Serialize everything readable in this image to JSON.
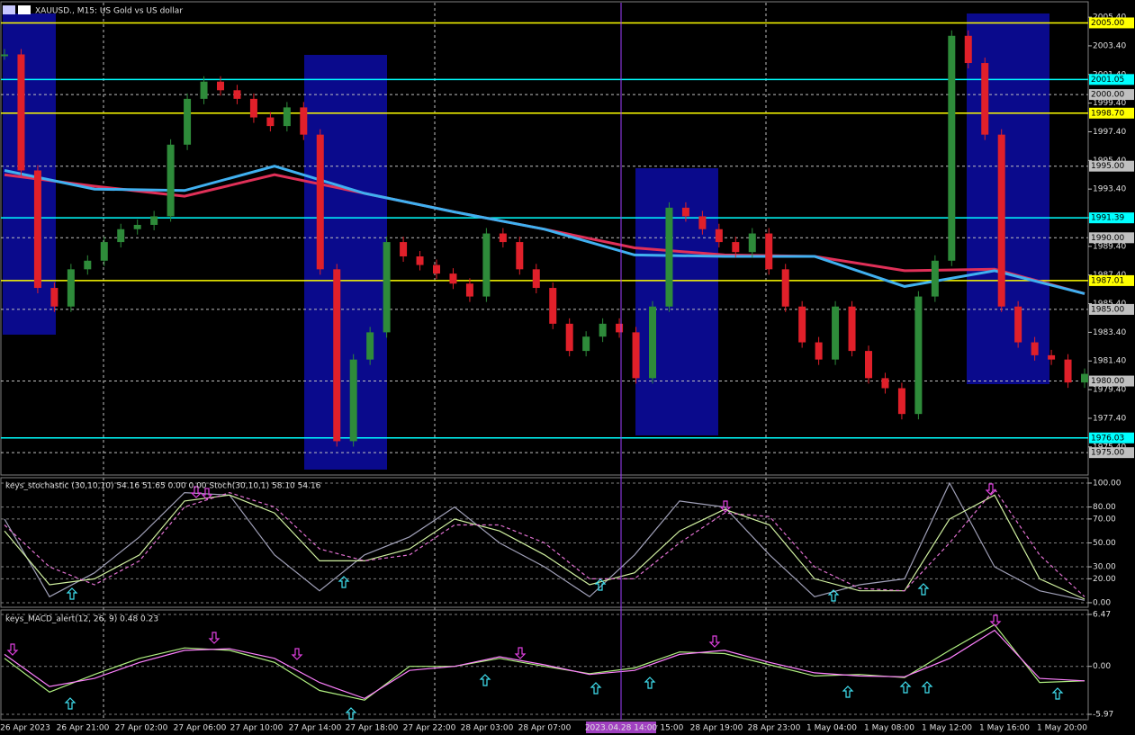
{
  "chart_data": [
    {
      "type": "candle",
      "title": "XAUUSD., M15:  US Gold vs US dollar",
      "ylim": [
        1973.44,
        2006.41
      ],
      "yticks": [
        {
          "value": 2005.4,
          "label": "2005.40"
        },
        {
          "value": 2003.4,
          "label": "2003.40"
        },
        {
          "value": 2001.4,
          "label": "2001.40"
        },
        {
          "value": 1999.4,
          "label": "1999.40"
        },
        {
          "value": 1997.4,
          "label": "1997.40"
        },
        {
          "value": 1995.4,
          "label": "1995.40"
        },
        {
          "value": 1993.4,
          "label": "1993.40"
        },
        {
          "value": 1991.4,
          "label": "1991.40"
        },
        {
          "value": 1989.4,
          "label": "1989.40"
        },
        {
          "value": 1987.4,
          "label": "1987.40"
        },
        {
          "value": 1985.4,
          "label": "1985.40"
        },
        {
          "value": 1983.4,
          "label": "1983.40"
        },
        {
          "value": 1981.4,
          "label": "1981.40"
        },
        {
          "value": 1979.4,
          "label": "1979.40"
        },
        {
          "value": 1977.4,
          "label": "1977.40"
        },
        {
          "value": 1975.4,
          "label": "1975.40"
        }
      ],
      "grid": false,
      "price": {
        "color_up": "#2e8b3a",
        "color_down": "#e0202a",
        "values": [
          2002.8,
          1994.7,
          1986.5,
          1985.2,
          1987.8,
          1988.4,
          1989.7,
          1990.6,
          1990.9,
          1991.5,
          1996.5,
          1999.7,
          2000.9,
          2000.3,
          1999.7,
          1998.4,
          1997.8,
          1999.1,
          1997.2,
          1987.8,
          1975.8,
          1981.5,
          1983.4,
          1989.7,
          1988.7,
          1988.1,
          1987.5,
          1986.8,
          1985.9,
          1990.3,
          1989.7,
          1987.8,
          1986.5,
          1984.0,
          1982.1,
          1983.1,
          1984.0,
          1983.4,
          1980.2,
          1985.2,
          1992.1,
          1991.5,
          1990.6,
          1989.7,
          1989.0,
          1990.3,
          1987.8,
          1985.2,
          1982.7,
          1981.5,
          1985.2,
          1982.1,
          1980.2,
          1979.5,
          1977.7,
          1985.9,
          1988.4,
          2004.1,
          2002.2,
          1997.2,
          1985.2,
          1982.7,
          1981.8,
          1981.5,
          1979.9,
          1980.5
        ]
      },
      "series": [
        {
          "color": "#e03058",
          "values": [
            1994.4,
            1993.6,
            1992.9,
            1994.4,
            1993.1,
            1991.8,
            1990.6,
            1989.3,
            1988.8,
            1988.7,
            1987.7,
            1987.8,
            1986.1
          ]
        },
        {
          "color": "#40b0f0",
          "values": [
            1994.7,
            1993.4,
            1993.3,
            1995.0,
            1993.1,
            1991.8,
            1990.6,
            1988.8,
            1988.7,
            1988.7,
            1986.6,
            1987.7,
            1986.1
          ]
        }
      ],
      "levels": {
        "values": [
          2005,
          2001.05,
          2000,
          1998.7,
          1995,
          1991.39,
          1990,
          1987.01,
          1985,
          1980,
          1976.03,
          1975
        ],
        "value_labels": [
          "2005.00",
          "2001.05",
          "2000.00",
          "1998.70",
          "1995.00",
          "1991.39",
          "1990.00",
          "1987.01",
          "1985.00",
          "1980.00",
          "1976.03",
          "1975.00"
        ],
        "colors": [
          "#ffff00",
          "#00ffff",
          "#c0c0c0",
          "#ffff00",
          "#c0c0c0",
          "#00ffff",
          "#c0c0c0",
          "#ffff00",
          "#c0c0c0",
          "#c0c0c0",
          "#00ffff",
          "#c0c0c0"
        ]
      },
      "x_labels": [
        "26 Apr 2023",
        "26 Apr 21:00",
        "27 Apr 02:00",
        "27 Apr 06:00",
        "27 Apr 10:00",
        "27 Apr 14:00",
        "27 Apr 18:00",
        "27 Apr 22:00",
        "28 Apr 03:00",
        "28 Apr 07:00",
        "28 Apr 15:00",
        "28 Apr 19:00",
        "28 Apr 23:00",
        "1 May 04:00",
        "1 May 08:00",
        "1 May 12:00",
        "1 May 16:00",
        "1 May 20:00"
      ],
      "crosshair_label": "2023.04.28 14:00"
    },
    {
      "type": "line",
      "title": "keys_stochastic (30,10,10) 54.16 51.65 0.00 0.00 Stoch(30,10,1) 58.10 54.16",
      "ylim": [
        -3.8,
        104.5
      ],
      "yticks": [
        {
          "value": 100,
          "label": "100.00"
        },
        {
          "value": 80,
          "label": "80.00"
        },
        {
          "value": 70,
          "label": "70.00"
        },
        {
          "value": 50,
          "label": "50.00"
        },
        {
          "value": 30,
          "label": "30.00"
        },
        {
          "value": 20,
          "label": "20.00"
        },
        {
          "value": 0,
          "label": "0.00"
        }
      ],
      "grid": true,
      "series": [
        {
          "color": "#a0a0b8",
          "values": [
            70,
            5,
            25,
            55,
            92,
            90,
            40,
            10,
            40,
            55,
            80,
            50,
            30,
            5,
            40,
            85,
            80,
            40,
            5,
            15,
            20,
            100,
            30,
            10,
            2
          ]
        },
        {
          "color": "#d0f0a0",
          "values": [
            60,
            15,
            20,
            40,
            85,
            90,
            75,
            35,
            35,
            45,
            70,
            60,
            40,
            15,
            25,
            60,
            78,
            65,
            20,
            10,
            10,
            70,
            90,
            20,
            3
          ]
        },
        {
          "color": "#e070d0",
          "dashed": true,
          "values": [
            65,
            30,
            15,
            35,
            80,
            92,
            80,
            45,
            35,
            40,
            65,
            65,
            50,
            20,
            20,
            50,
            75,
            72,
            30,
            12,
            10,
            50,
            95,
            40,
            5
          ]
        }
      ]
    },
    {
      "type": "line",
      "title": "keys_MACD_alert(12, 26, 9) 0.48 0.23",
      "ylim": [
        -6.64,
        7.03
      ],
      "yticks": [
        {
          "value": 6.47,
          "label": "6.47"
        },
        {
          "value": 0,
          "label": "0.00"
        },
        {
          "value": -5.97,
          "label": "-5.97"
        }
      ],
      "grid": true,
      "series": [
        {
          "color": "#b0f080",
          "values": [
            1.0,
            -3.2,
            -1.0,
            1.0,
            2.3,
            2.0,
            0.5,
            -3.0,
            -4.2,
            0,
            0,
            1.0,
            0,
            -0.9,
            -0.2,
            1.8,
            1.6,
            0.2,
            -1.2,
            -1.0,
            -1.4,
            2.0,
            5.2,
            -2.0,
            -1.8
          ]
        },
        {
          "color": "#ff80ff",
          "values": [
            1.5,
            -2.5,
            -1.5,
            0.5,
            2.0,
            2.2,
            1.0,
            -2.0,
            -4.0,
            -0.5,
            0,
            1.2,
            0.2,
            -1.0,
            -0.5,
            1.5,
            2.0,
            0.5,
            -0.8,
            -1.2,
            -1.3,
            1.0,
            4.5,
            -1.5,
            -1.8
          ]
        }
      ]
    }
  ]
}
